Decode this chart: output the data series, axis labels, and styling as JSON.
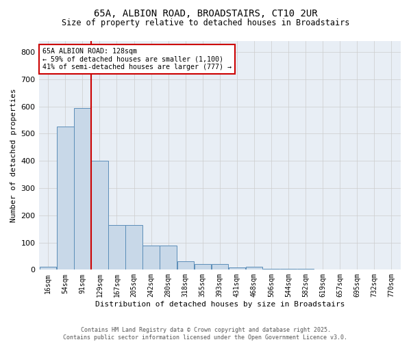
{
  "title_line1": "65A, ALBION ROAD, BROADSTAIRS, CT10 2UR",
  "title_line2": "Size of property relative to detached houses in Broadstairs",
  "xlabel": "Distribution of detached houses by size in Broadstairs",
  "ylabel": "Number of detached properties",
  "bar_labels": [
    "16sqm",
    "54sqm",
    "91sqm",
    "129sqm",
    "167sqm",
    "205sqm",
    "242sqm",
    "280sqm",
    "318sqm",
    "355sqm",
    "393sqm",
    "431sqm",
    "468sqm",
    "506sqm",
    "544sqm",
    "582sqm",
    "619sqm",
    "657sqm",
    "695sqm",
    "732sqm",
    "770sqm"
  ],
  "values": [
    10,
    527,
    593,
    400,
    163,
    163,
    88,
    88,
    30,
    20,
    20,
    8,
    10,
    4,
    4,
    4,
    2,
    2,
    1,
    1,
    1
  ],
  "bar_color": "#c8d8e8",
  "bar_edge_color": "#5b8db8",
  "grid_color": "#cccccc",
  "bg_color": "#e8eef5",
  "vline_x": 2.5,
  "vline_color": "#cc0000",
  "annotation_text": "65A ALBION ROAD: 128sqm\n← 59% of detached houses are smaller (1,100)\n41% of semi-detached houses are larger (777) →",
  "annotation_box_color": "#cc0000",
  "ylim": [
    0,
    840
  ],
  "yticks": [
    0,
    100,
    200,
    300,
    400,
    500,
    600,
    700,
    800
  ],
  "footer_line1": "Contains HM Land Registry data © Crown copyright and database right 2025.",
  "footer_line2": "Contains public sector information licensed under the Open Government Licence v3.0."
}
